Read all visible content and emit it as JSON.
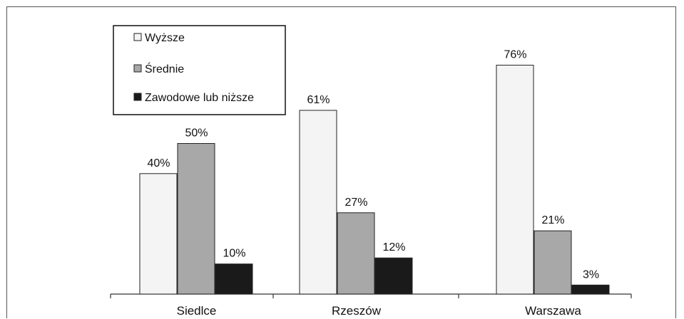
{
  "chart_data": {
    "type": "bar",
    "categories": [
      "Siedlce",
      "Rzeszów",
      "Warszawa"
    ],
    "series": [
      {
        "name": "Wyższe",
        "values": [
          40,
          61,
          76
        ],
        "color": "#f4f4f4"
      },
      {
        "name": "Średnie",
        "values": [
          50,
          27,
          21
        ],
        "color": "#a8a8a8"
      },
      {
        "name": "Zawodowe lub niższe",
        "values": [
          10,
          12,
          3
        ],
        "color": "#1a1a1a"
      }
    ],
    "value_labels": [
      [
        "40%",
        "61%",
        "76%"
      ],
      [
        "50%",
        "27%",
        "21%"
      ],
      [
        "10%",
        "12%",
        "3%"
      ]
    ],
    "unit": "%",
    "ylim": [
      0,
      100
    ],
    "grid": false,
    "legend_position": "top-left",
    "title": "",
    "xlabel": "",
    "ylabel": ""
  }
}
